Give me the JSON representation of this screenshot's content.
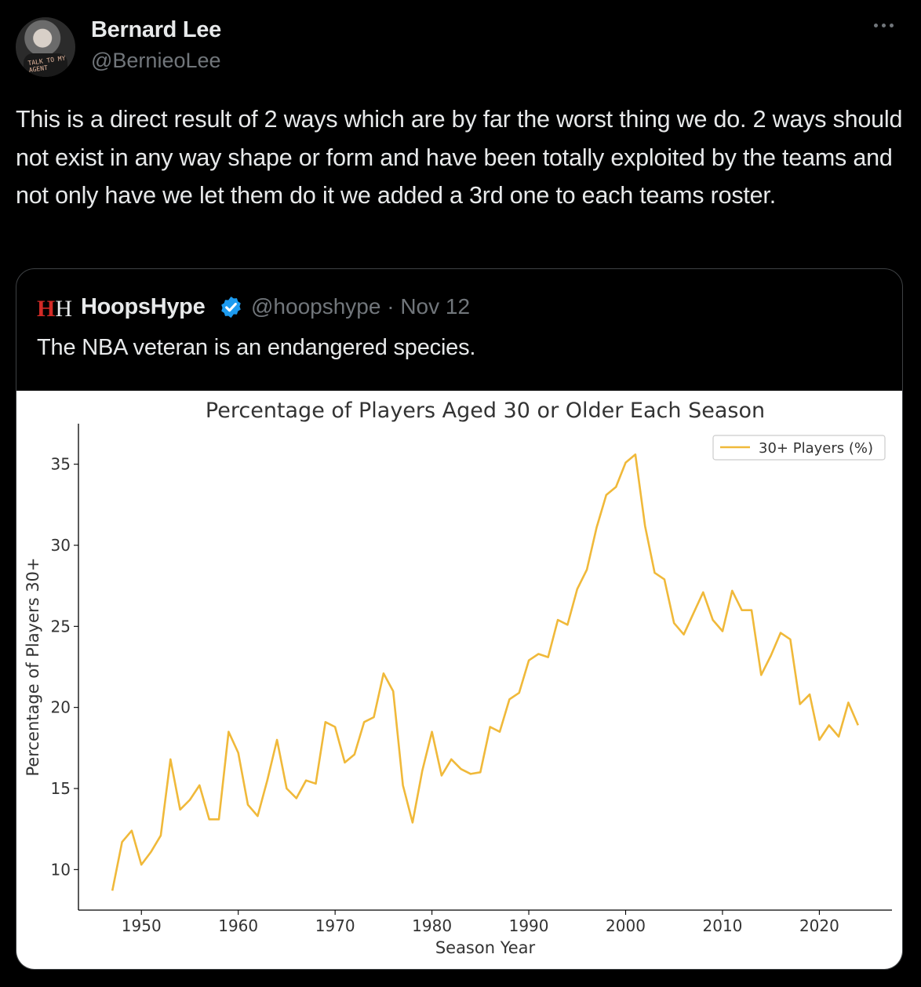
{
  "tweet": {
    "author_name": "Bernard Lee",
    "author_handle": "@BernieoLee",
    "avatar_text": "TALK TO MY AGENT",
    "text": "This is a direct result of 2 ways which are by far the worst thing we do.  2 ways should not exist in any way shape or form and have been totally exploited by the teams and not only have we let them do it we added a 3rd one to each teams roster.",
    "more_icon": "more-horizontal-icon"
  },
  "quoted_tweet": {
    "logo_text_1": "H",
    "logo_text_2": "H",
    "author_name": "HoopsHype",
    "verified_icon": "verified-badge-icon",
    "handle_and_date": "@hoopshype · Nov 12",
    "text": "The NBA veteran is an endangered species.",
    "colors": {
      "logo_red": "#d32a26",
      "verified_blue": "#1d9bf0"
    }
  },
  "chart_data": {
    "type": "line",
    "title": "Percentage of Players Aged 30 or Older Each Season",
    "xlabel": "Season Year",
    "ylabel": "Percentage of Players 30+",
    "xlim": [
      1943.5,
      2027.5
    ],
    "ylim": [
      7.5,
      37.5
    ],
    "xticks": [
      1950,
      1960,
      1970,
      1980,
      1990,
      2000,
      2010,
      2020
    ],
    "yticks": [
      10,
      15,
      20,
      25,
      30,
      35
    ],
    "grid": false,
    "legend_position": "top-right",
    "series": [
      {
        "name": "30+ Players (%)",
        "color": "#f0b93a",
        "x": [
          1947,
          1948,
          1949,
          1950,
          1951,
          1952,
          1953,
          1954,
          1955,
          1956,
          1957,
          1958,
          1959,
          1960,
          1961,
          1962,
          1963,
          1964,
          1965,
          1966,
          1967,
          1968,
          1969,
          1970,
          1971,
          1972,
          1973,
          1974,
          1975,
          1976,
          1977,
          1978,
          1979,
          1980,
          1981,
          1982,
          1983,
          1984,
          1985,
          1986,
          1987,
          1988,
          1989,
          1990,
          1991,
          1992,
          1993,
          1994,
          1995,
          1996,
          1997,
          1998,
          1999,
          2000,
          2001,
          2002,
          2003,
          2004,
          2005,
          2006,
          2007,
          2008,
          2009,
          2010,
          2011,
          2012,
          2013,
          2014,
          2015,
          2016,
          2017,
          2018,
          2019,
          2020,
          2021,
          2022,
          2023,
          2024
        ],
        "values": [
          8.7,
          11.7,
          12.4,
          10.3,
          11.1,
          12.1,
          16.8,
          13.7,
          14.3,
          15.2,
          13.1,
          13.1,
          18.5,
          17.2,
          14.0,
          13.3,
          15.5,
          18.0,
          15.0,
          14.4,
          15.5,
          15.3,
          19.1,
          18.8,
          16.6,
          17.1,
          19.1,
          19.4,
          22.1,
          21.0,
          15.2,
          12.9,
          16.1,
          18.5,
          15.8,
          16.8,
          16.2,
          15.9,
          16.0,
          18.8,
          18.5,
          20.5,
          20.9,
          22.9,
          23.3,
          23.1,
          25.4,
          25.1,
          27.3,
          28.5,
          31.1,
          33.1,
          33.6,
          35.1,
          35.6,
          31.2,
          28.3,
          27.9,
          25.2,
          24.5,
          25.8,
          27.1,
          25.4,
          24.7,
          27.2,
          26.0,
          26.0,
          22.0,
          23.2,
          24.6,
          24.2,
          20.2,
          20.8,
          18.0,
          18.9,
          18.2,
          20.3,
          18.9
        ]
      }
    ]
  }
}
